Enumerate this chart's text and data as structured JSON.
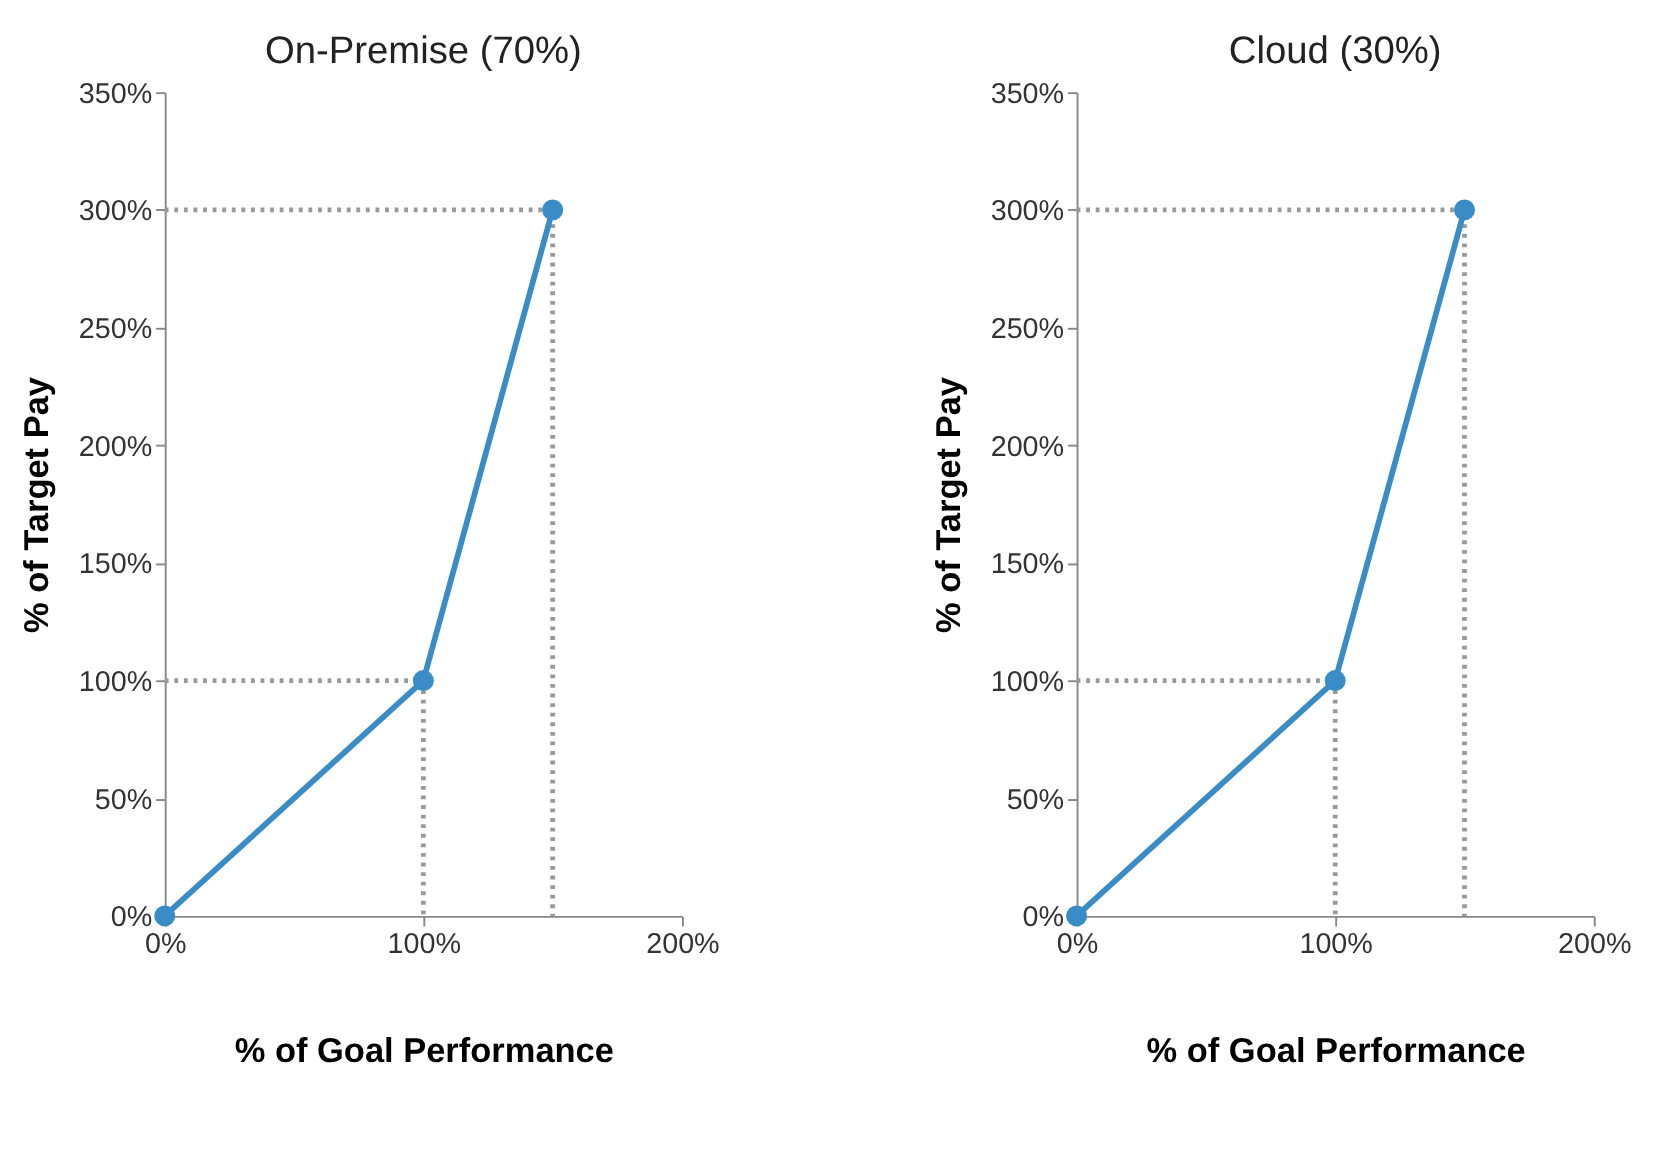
{
  "chart_data": [
    {
      "type": "line",
      "title": "On-Premise (70%)",
      "xlabel": "% of Goal Performance",
      "ylabel": "% of Target Pay",
      "grid": false,
      "xlim": [
        0,
        200
      ],
      "xticks": [
        {
          "value": 0,
          "label": "0%"
        },
        {
          "value": 100,
          "label": "100%"
        },
        {
          "value": 200,
          "label": "200%"
        }
      ],
      "ylim": [
        0,
        350
      ],
      "yticks": [
        {
          "value": 0,
          "label": "0%"
        },
        {
          "value": 50,
          "label": "50%"
        },
        {
          "value": 100,
          "label": "100%"
        },
        {
          "value": 150,
          "label": "150%"
        },
        {
          "value": 200,
          "label": "200%"
        },
        {
          "value": 250,
          "label": "250%"
        },
        {
          "value": 300,
          "label": "300%"
        },
        {
          "value": 350,
          "label": "350%"
        }
      ],
      "series": [
        {
          "line_style": "dotted",
          "marker": "none",
          "color": "#999999",
          "x": [
            0,
            100,
            100
          ],
          "values": [
            100,
            100,
            0
          ]
        },
        {
          "line_style": "dotted",
          "marker": "none",
          "color": "#999999",
          "x": [
            0,
            150,
            150
          ],
          "values": [
            300,
            300,
            0
          ]
        },
        {
          "line_style": "solid",
          "marker": "circle",
          "color": "#3a8cc6",
          "x": [
            0,
            100,
            150
          ],
          "values": [
            0,
            100,
            300
          ]
        }
      ]
    },
    {
      "type": "line",
      "title": "Cloud (30%)",
      "xlabel": "% of Goal Performance",
      "ylabel": "% of Target Pay",
      "grid": false,
      "xlim": [
        0,
        200
      ],
      "xticks": [
        {
          "value": 0,
          "label": "0%"
        },
        {
          "value": 100,
          "label": "100%"
        },
        {
          "value": 200,
          "label": "200%"
        }
      ],
      "ylim": [
        0,
        350
      ],
      "yticks": [
        {
          "value": 0,
          "label": "0%"
        },
        {
          "value": 50,
          "label": "50%"
        },
        {
          "value": 100,
          "label": "100%"
        },
        {
          "value": 150,
          "label": "150%"
        },
        {
          "value": 200,
          "label": "200%"
        },
        {
          "value": 250,
          "label": "250%"
        },
        {
          "value": 300,
          "label": "300%"
        },
        {
          "value": 350,
          "label": "350%"
        }
      ],
      "series": [
        {
          "line_style": "dotted",
          "marker": "none",
          "color": "#999999",
          "x": [
            0,
            100,
            100
          ],
          "values": [
            100,
            100,
            0
          ]
        },
        {
          "line_style": "dotted",
          "marker": "none",
          "color": "#999999",
          "x": [
            0,
            150,
            150
          ],
          "values": [
            300,
            300,
            0
          ]
        },
        {
          "line_style": "solid",
          "marker": "circle",
          "color": "#3a8cc6",
          "x": [
            0,
            100,
            150
          ],
          "values": [
            0,
            100,
            300
          ]
        }
      ]
    }
  ]
}
